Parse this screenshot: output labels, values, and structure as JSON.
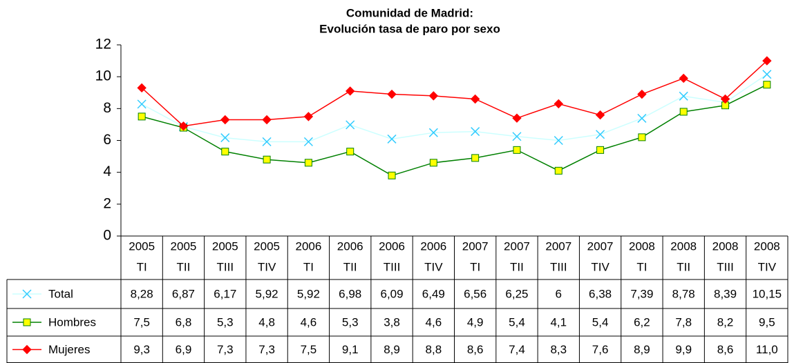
{
  "chart_data": {
    "type": "line",
    "title": [
      "Comunidad de Madrid:",
      "Evolución tasa de paro por sexo"
    ],
    "categories": [
      [
        "2005",
        "TI"
      ],
      [
        "2005",
        "TII"
      ],
      [
        "2005",
        "TIII"
      ],
      [
        "2005",
        "TIV"
      ],
      [
        "2006",
        "TI"
      ],
      [
        "2006",
        "TII"
      ],
      [
        "2006",
        "TIII"
      ],
      [
        "2006",
        "TIV"
      ],
      [
        "2007",
        "TI"
      ],
      [
        "2007",
        "TII"
      ],
      [
        "2007",
        "TIII"
      ],
      [
        "2007",
        "TIV"
      ],
      [
        "2008",
        "TI"
      ],
      [
        "2008",
        "TII"
      ],
      [
        "2008",
        "TIII"
      ],
      [
        "2008",
        "TIV"
      ]
    ],
    "series": [
      {
        "name": "Total",
        "color": "#ccffff",
        "marker_color": "#33ccff",
        "marker": "x",
        "values": [
          8.28,
          6.87,
          6.17,
          5.92,
          5.92,
          6.98,
          6.09,
          6.49,
          6.56,
          6.25,
          6,
          6.38,
          7.39,
          8.78,
          8.39,
          10.15
        ],
        "value_labels": [
          "8,28",
          "6,87",
          "6,17",
          "5,92",
          "5,92",
          "6,98",
          "6,09",
          "6,49",
          "6,56",
          "6,25",
          "6",
          "6,38",
          "7,39",
          "8,78",
          "8,39",
          "10,15"
        ]
      },
      {
        "name": "Hombres",
        "color": "#008000",
        "marker_color": "#ffff00",
        "marker": "square",
        "values": [
          7.5,
          6.8,
          5.3,
          4.8,
          4.6,
          5.3,
          3.8,
          4.6,
          4.9,
          5.4,
          4.1,
          5.4,
          6.2,
          7.8,
          8.2,
          9.5
        ],
        "value_labels": [
          "7,5",
          "6,8",
          "5,3",
          "4,8",
          "4,6",
          "5,3",
          "3,8",
          "4,6",
          "4,9",
          "5,4",
          "4,1",
          "5,4",
          "6,2",
          "7,8",
          "8,2",
          "9,5"
        ]
      },
      {
        "name": "Mujeres",
        "color": "#ff0000",
        "marker_color": "#ff0000",
        "marker": "diamond",
        "values": [
          9.3,
          6.9,
          7.3,
          7.3,
          7.5,
          9.1,
          8.9,
          8.8,
          8.6,
          7.4,
          8.3,
          7.6,
          8.9,
          9.9,
          8.6,
          11.0
        ],
        "value_labels": [
          "9,3",
          "6,9",
          "7,3",
          "7,3",
          "7,5",
          "9,1",
          "8,9",
          "8,8",
          "8,6",
          "7,4",
          "8,3",
          "7,6",
          "8,9",
          "9,9",
          "8,6",
          "11,0"
        ]
      }
    ],
    "ylim": [
      0,
      12
    ],
    "yticks": [
      0,
      2,
      4,
      6,
      8,
      10,
      12
    ],
    "grid": false
  }
}
